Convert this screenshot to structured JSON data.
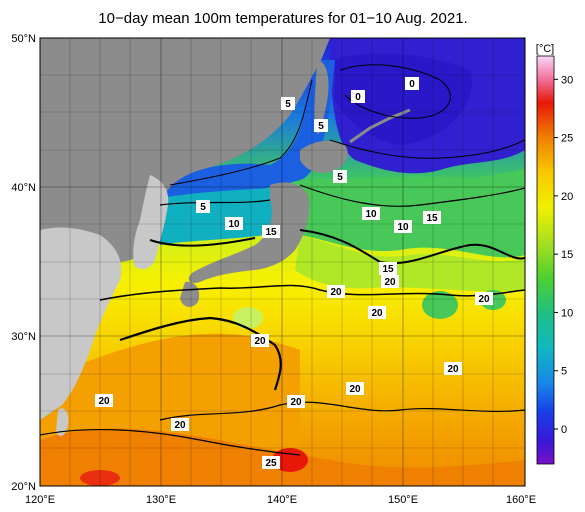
{
  "title": "10−day mean 100m temperatures for 01−10 Aug. 2021.",
  "colorbar": {
    "unit": "[°C]",
    "ticks": [
      "30",
      "25",
      "20",
      "15",
      "10",
      "5",
      "0"
    ],
    "tick_values": [
      30,
      25,
      20,
      15,
      10,
      5,
      0
    ],
    "range": [
      -3,
      32
    ],
    "stops": [
      {
        "v": -3,
        "c": "#7a10c8"
      },
      {
        "v": -1,
        "c": "#3818d8"
      },
      {
        "v": 1.5,
        "c": "#1840e8"
      },
      {
        "v": 4,
        "c": "#1888e8"
      },
      {
        "v": 7,
        "c": "#10b8c0"
      },
      {
        "v": 10,
        "c": "#20c080"
      },
      {
        "v": 13,
        "c": "#50d030"
      },
      {
        "v": 16,
        "c": "#a8e020"
      },
      {
        "v": 19,
        "c": "#f0f000"
      },
      {
        "v": 22,
        "c": "#f8c800"
      },
      {
        "v": 25,
        "c": "#f08000"
      },
      {
        "v": 28,
        "c": "#e81808"
      },
      {
        "v": 30,
        "c": "#f0709a"
      },
      {
        "v": 32,
        "c": "#f8d8f8"
      }
    ]
  },
  "axes": {
    "lon_labels": [
      "120°E",
      "130°E",
      "140°E",
      "150°E",
      "160°E"
    ],
    "lat_labels": [
      "50°N",
      "40°N",
      "30°N",
      "20°N"
    ],
    "lon_range": [
      120,
      160
    ],
    "lat_range": [
      20,
      50
    ],
    "grid": true
  },
  "colors": {
    "land": "#c8c8c8",
    "land_dark": "#8c8c8c",
    "coastline": "#000000"
  },
  "contour_labels": [
    {
      "text": "0"
    },
    {
      "text": "0"
    },
    {
      "text": "5"
    },
    {
      "text": "5"
    },
    {
      "text": "5"
    },
    {
      "text": "5"
    },
    {
      "text": "10"
    },
    {
      "text": "15"
    },
    {
      "text": "10"
    },
    {
      "text": "10"
    },
    {
      "text": "15"
    },
    {
      "text": "15"
    },
    {
      "text": "20"
    },
    {
      "text": "20"
    },
    {
      "text": "20"
    },
    {
      "text": "20"
    },
    {
      "text": "20"
    },
    {
      "text": "20"
    },
    {
      "text": "20"
    },
    {
      "text": "20"
    },
    {
      "text": "20"
    },
    {
      "text": "20"
    },
    {
      "text": "25"
    }
  ]
}
